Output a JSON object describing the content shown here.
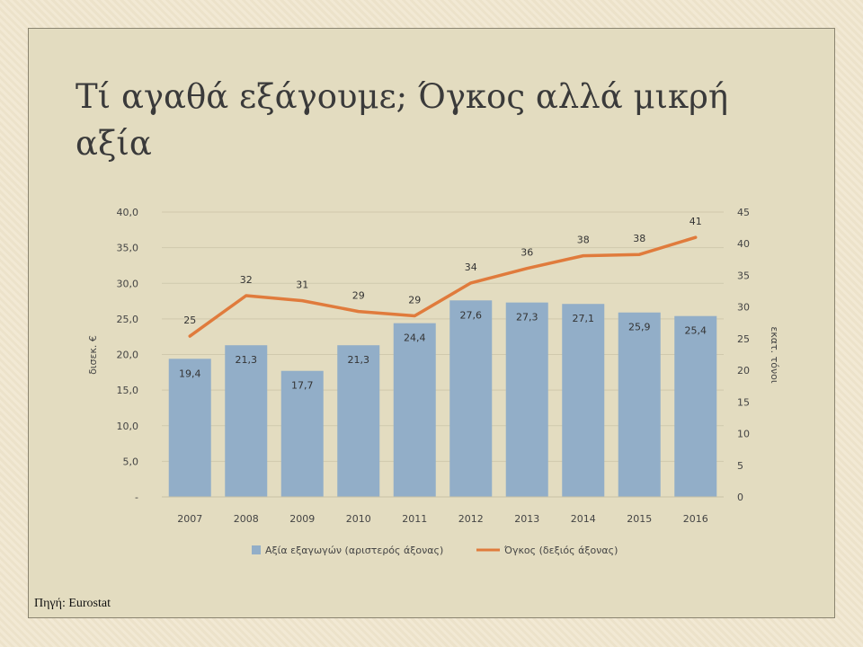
{
  "slide": {
    "title": "Τί αγαθά εξάγουμε; Όγκος αλλά μικρή αξία",
    "source": "Πηγή: Eurostat"
  },
  "colors": {
    "bar": "#92aec8",
    "line": "#e07b3c",
    "slide_bg": "#e3dcc0",
    "grid": "#d0c9ad"
  },
  "chart_data": {
    "type": "bar",
    "categories": [
      "2007",
      "2008",
      "2009",
      "2010",
      "2011",
      "2012",
      "2013",
      "2014",
      "2015",
      "2016"
    ],
    "series": [
      {
        "name": "Αξία εξαγωγών (αριστερός άξονας)",
        "type": "bar",
        "axis": "left",
        "values": [
          19.4,
          21.3,
          17.7,
          21.3,
          24.4,
          27.6,
          27.3,
          27.1,
          25.9,
          25.4
        ],
        "labels": [
          "19,4",
          "21,3",
          "17,7",
          "21,3",
          "24,4",
          "27,6",
          "27,3",
          "27,1",
          "25,9",
          "25,4"
        ]
      },
      {
        "name": "Όγκος (δεξιός άξονας)",
        "type": "line",
        "axis": "right",
        "values": [
          25.4,
          31.8,
          31.0,
          29.3,
          28.6,
          33.8,
          36.1,
          38.1,
          38.3,
          41.0
        ],
        "labels": [
          "25",
          "32",
          "31",
          "29",
          "29",
          "34",
          "36",
          "38",
          "38",
          "41"
        ]
      }
    ],
    "y_left": {
      "label": "δισεκ. €",
      "ylim": [
        0,
        40
      ],
      "ticks": [
        "-",
        "5,0",
        "10,0",
        "15,0",
        "20,0",
        "25,0",
        "30,0",
        "35,0",
        "40,0"
      ]
    },
    "y_right": {
      "label": "εκατ. τόνοι",
      "ylim": [
        0,
        45
      ],
      "ticks": [
        "0",
        "5",
        "10",
        "15",
        "20",
        "25",
        "30",
        "35",
        "40",
        "45"
      ]
    },
    "grid": true,
    "legend": "bottom"
  }
}
